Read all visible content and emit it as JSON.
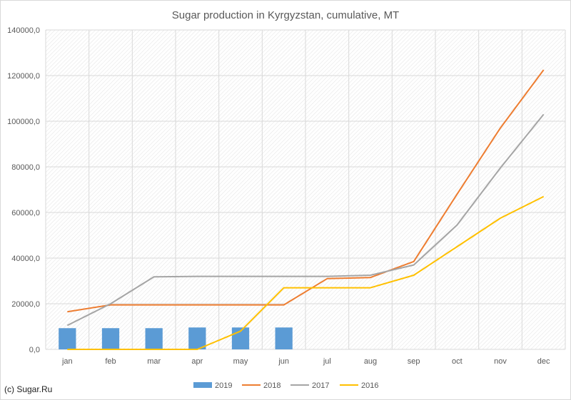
{
  "chart_data": {
    "type": "bar",
    "title": "Sugar production in Kyrgyzstan, cumulative, MT",
    "categories": [
      "jan",
      "feb",
      "mar",
      "apr",
      "may",
      "jun",
      "jul",
      "aug",
      "sep",
      "oct",
      "nov",
      "dec"
    ],
    "ylim": [
      0,
      140000
    ],
    "yticks": [
      0,
      20000,
      40000,
      60000,
      80000,
      100000,
      120000,
      140000
    ],
    "ytick_labels": [
      "0,0",
      "20000,0",
      "40000,0",
      "60000,0",
      "80000,0",
      "100000,0",
      "120000,0",
      "140000,0"
    ],
    "grid": true,
    "legend_position": "bottom",
    "series": [
      {
        "name": "2019",
        "kind": "bar",
        "color": "#5b9bd5",
        "values": [
          9300,
          9300,
          9300,
          9600,
          9600,
          9600,
          null,
          null,
          null,
          null,
          null,
          null
        ]
      },
      {
        "name": "2018",
        "kind": "line",
        "color": "#ed7d31",
        "values": [
          16500,
          19500,
          19500,
          19500,
          19500,
          19500,
          31000,
          31500,
          38500,
          68000,
          97000,
          122500
        ]
      },
      {
        "name": "2017",
        "kind": "line",
        "color": "#a5a5a5",
        "values": [
          10500,
          20000,
          31800,
          32000,
          32000,
          32000,
          32000,
          32500,
          37000,
          54500,
          79500,
          103000
        ]
      },
      {
        "name": "2016",
        "kind": "line",
        "color": "#ffc000",
        "values": [
          0,
          0,
          0,
          0,
          8000,
          27000,
          27000,
          27000,
          32500,
          45000,
          57500,
          67000
        ]
      }
    ]
  },
  "source": "(c) Sugar.Ru"
}
